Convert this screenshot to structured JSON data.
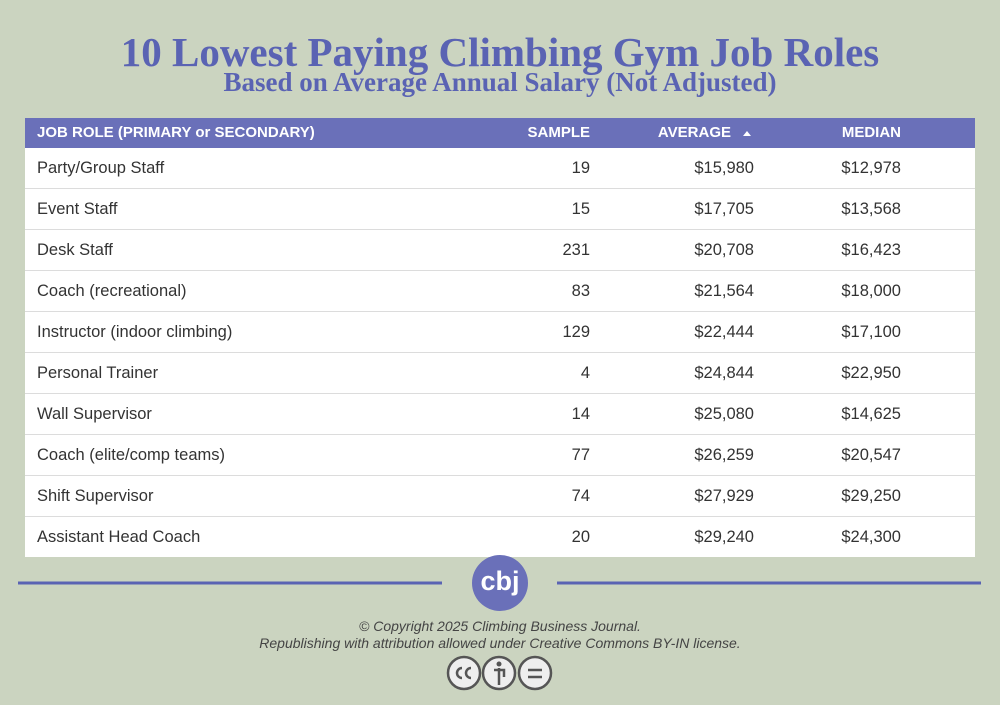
{
  "header": {
    "title": "10 Lowest Paying Climbing Gym Job Roles",
    "subtitle": "Based on Average Annual Salary (Not Adjusted)"
  },
  "table": {
    "columns": [
      "JOB ROLE (PRIMARY or SECONDARY)",
      "SAMPLE",
      "AVERAGE",
      "MEDIAN"
    ],
    "rows": [
      [
        "Party/Group Staff",
        "19",
        "$15,980",
        "$12,978"
      ],
      [
        "Event Staff",
        "15",
        "$17,705",
        "$13,568"
      ],
      [
        "Desk Staff",
        "231",
        "$20,708",
        "$16,423"
      ],
      [
        "Coach (recreational)",
        "83",
        "$21,564",
        "$18,000"
      ],
      [
        "Instructor (indoor climbing)",
        "129",
        "$22,444",
        "$17,100"
      ],
      [
        "Personal Trainer",
        "4",
        "$24,844",
        "$22,950"
      ],
      [
        "Wall Supervisor",
        "14",
        "$25,080",
        "$14,625"
      ],
      [
        "Coach (elite/comp teams)",
        "77",
        "$26,259",
        "$20,547"
      ],
      [
        "Shift Supervisor",
        "74",
        "$27,929",
        "$29,250"
      ],
      [
        "Assistant Head Coach",
        "20",
        "$29,240",
        "$24,300"
      ]
    ]
  },
  "footer": {
    "logo": "cbj",
    "copyright": "© Copyright 2025 Climbing Business Journal.",
    "license": "Republishing with attribution allowed under Creative Commons BY-IN license."
  }
}
